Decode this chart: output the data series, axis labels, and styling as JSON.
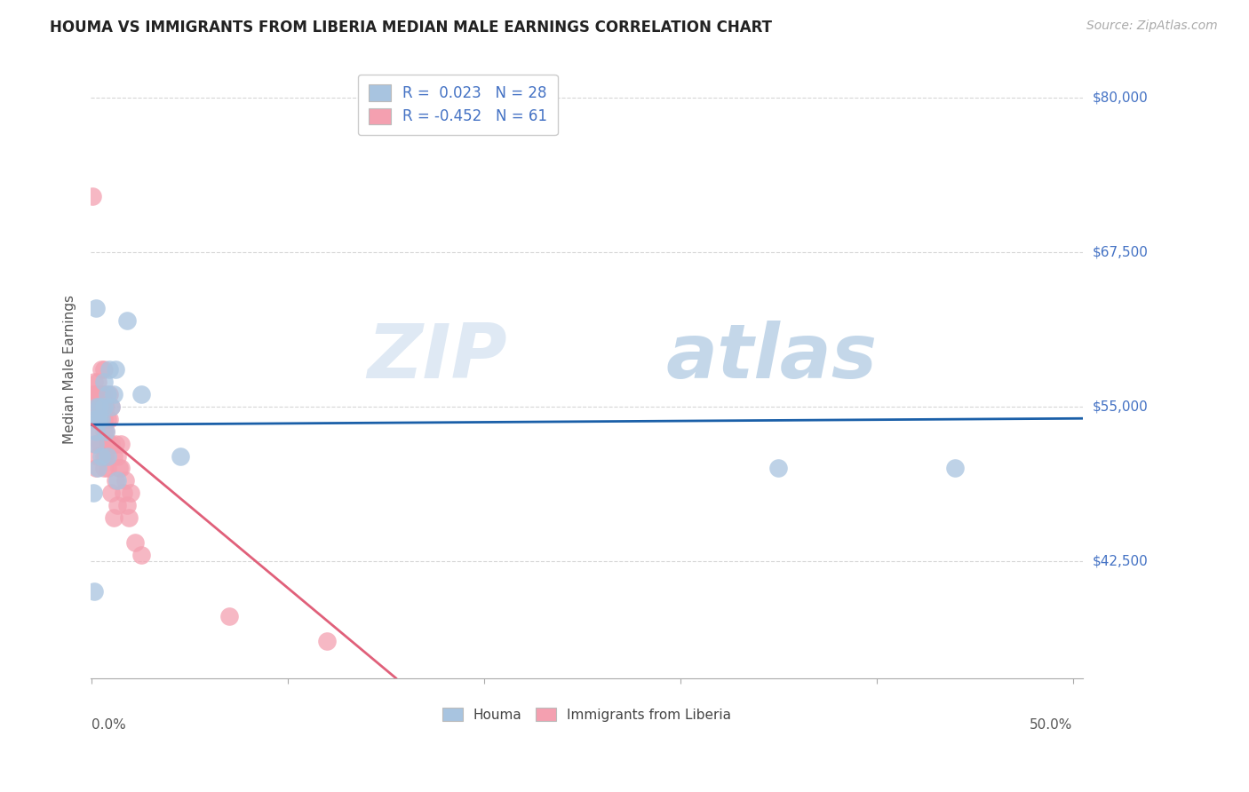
{
  "title": "HOUMA VS IMMIGRANTS FROM LIBERIA MEDIAN MALE EARNINGS CORRELATION CHART",
  "source": "Source: ZipAtlas.com",
  "ylabel": "Median Male Earnings",
  "yticks": [
    42500,
    55000,
    67500,
    80000
  ],
  "ytick_labels": [
    "$42,500",
    "$55,000",
    "$67,500",
    "$80,000"
  ],
  "ymin": 33000,
  "ymax": 83000,
  "xmin": -0.0005,
  "xmax": 0.505,
  "houma_R": 0.023,
  "houma_N": 28,
  "liberia_R": -0.452,
  "liberia_N": 61,
  "houma_color": "#a8c4e0",
  "liberia_color": "#f4a0b0",
  "houma_line_color": "#1a5fa8",
  "liberia_line_color": "#e0607a",
  "watermark_zip": "ZIP",
  "watermark_atlas": "atlas",
  "xtick_positions": [
    0.0,
    0.1,
    0.2,
    0.3,
    0.4,
    0.5
  ],
  "houma_x": [
    0.0008,
    0.001,
    0.0015,
    0.0018,
    0.002,
    0.0022,
    0.0025,
    0.003,
    0.003,
    0.004,
    0.004,
    0.005,
    0.005,
    0.006,
    0.006,
    0.007,
    0.008,
    0.008,
    0.009,
    0.01,
    0.011,
    0.012,
    0.013,
    0.018,
    0.025,
    0.35,
    0.44,
    0.045
  ],
  "houma_y": [
    48000,
    40000,
    52000,
    54000,
    53000,
    63000,
    55000,
    54000,
    50000,
    55000,
    54000,
    54000,
    51000,
    57000,
    55000,
    53000,
    56000,
    51000,
    58000,
    55000,
    56000,
    58000,
    49000,
    62000,
    56000,
    50000,
    50000,
    51000
  ],
  "liberia_x": [
    0.0005,
    0.0008,
    0.001,
    0.001,
    0.0012,
    0.0015,
    0.0018,
    0.002,
    0.002,
    0.002,
    0.002,
    0.003,
    0.003,
    0.003,
    0.003,
    0.003,
    0.004,
    0.004,
    0.004,
    0.004,
    0.005,
    0.005,
    0.005,
    0.005,
    0.005,
    0.006,
    0.006,
    0.006,
    0.006,
    0.006,
    0.006,
    0.007,
    0.007,
    0.007,
    0.008,
    0.008,
    0.008,
    0.009,
    0.009,
    0.009,
    0.01,
    0.01,
    0.01,
    0.011,
    0.011,
    0.012,
    0.012,
    0.013,
    0.013,
    0.014,
    0.015,
    0.015,
    0.016,
    0.017,
    0.018,
    0.019,
    0.02,
    0.022,
    0.025,
    0.12,
    0.07
  ],
  "liberia_y": [
    72000,
    56000,
    55000,
    54000,
    57000,
    52000,
    56000,
    55000,
    54000,
    53000,
    50000,
    57000,
    56000,
    55000,
    54000,
    51000,
    56000,
    55000,
    54000,
    52000,
    58000,
    56000,
    55000,
    54000,
    52000,
    58000,
    56000,
    54000,
    53000,
    51000,
    50000,
    55000,
    53000,
    51000,
    54000,
    52000,
    50000,
    56000,
    54000,
    52000,
    55000,
    52000,
    48000,
    51000,
    46000,
    52000,
    49000,
    51000,
    47000,
    50000,
    52000,
    50000,
    48000,
    49000,
    47000,
    46000,
    48000,
    44000,
    43000,
    36000,
    38000
  ]
}
